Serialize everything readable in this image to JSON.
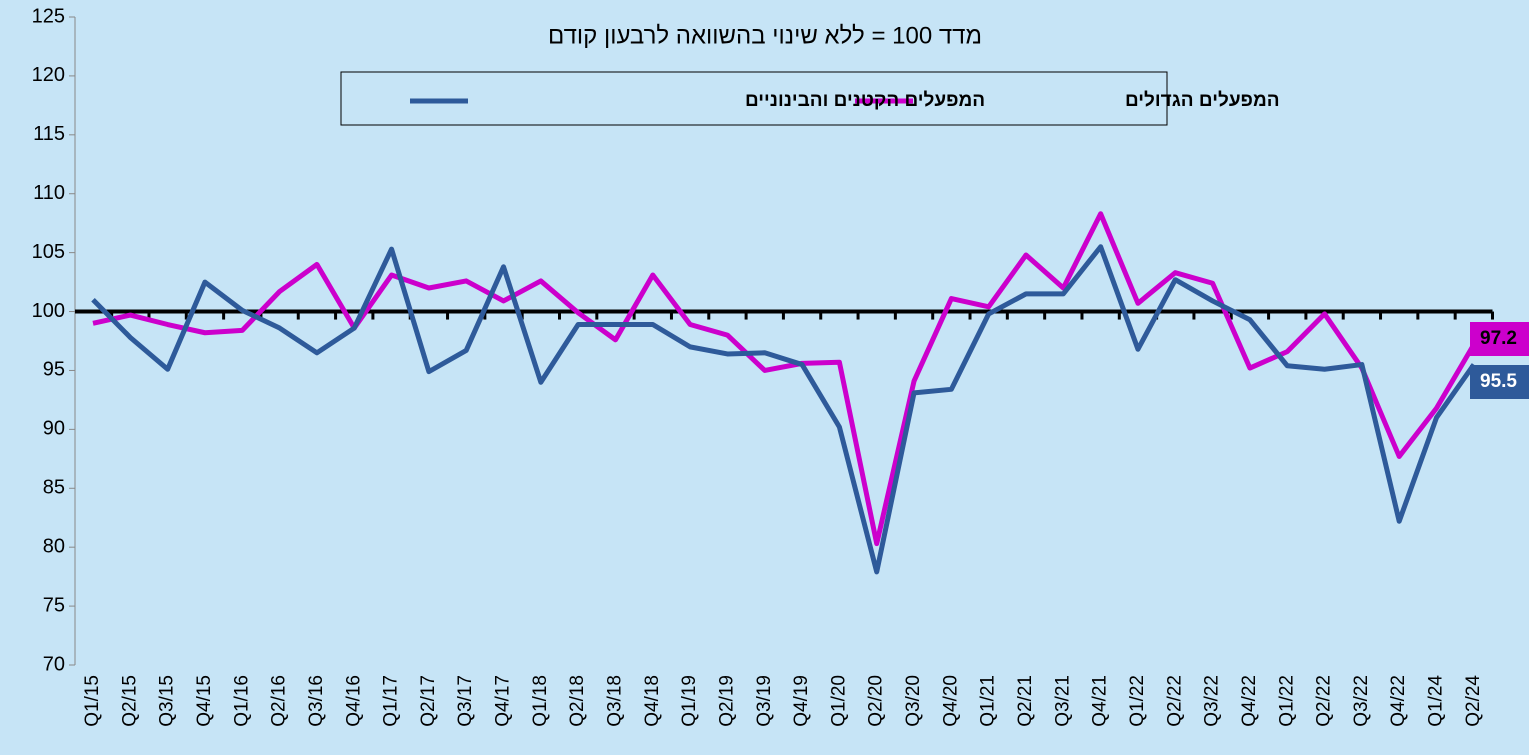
{
  "chart_data": {
    "type": "line",
    "subtitle": "מדד 100 = ללא שינוי בהשוואה לרבעון קודם",
    "categories": [
      "Q1/15",
      "Q2/15",
      "Q3/15",
      "Q4/15",
      "Q1/16",
      "Q2/16",
      "Q3/16",
      "Q4/16",
      "Q1/17",
      "Q2/17",
      "Q3/17",
      "Q4/17",
      "Q1/18",
      "Q2/18",
      "Q3/18",
      "Q4/18",
      "Q1/19",
      "Q2/19",
      "Q3/19",
      "Q4/19",
      "Q1/20",
      "Q2/20",
      "Q3/20",
      "Q4/20",
      "Q1/21",
      "Q2/21",
      "Q3/21",
      "Q4/21",
      "Q1/22",
      "Q2/22",
      "Q3/22",
      "Q4/22",
      "Q1/22",
      "Q2/22",
      "Q3/22",
      "Q4/22",
      "Q1/24",
      "Q2/24"
    ],
    "series": [
      {
        "name": "המפעלים הגדולים",
        "color": "#cc00cc",
        "values": [
          99.0,
          99.7,
          98.9,
          98.2,
          98.4,
          101.7,
          104.0,
          98.6,
          103.1,
          102.0,
          102.6,
          100.9,
          102.6,
          99.9,
          97.6,
          103.1,
          98.9,
          98.0,
          95.0,
          95.6,
          95.7,
          80.3,
          94.1,
          101.1,
          100.4,
          104.8,
          102.0,
          108.3,
          100.7,
          103.3,
          102.4,
          95.2,
          96.6,
          99.8,
          95.2,
          87.7,
          91.8,
          97.2
        ]
      },
      {
        "name": "המפעלים הקטנים והבינוניים",
        "color": "#2e5a9a",
        "values": [
          101.0,
          97.8,
          95.1,
          102.5,
          100.1,
          98.6,
          96.5,
          98.6,
          105.3,
          94.9,
          96.7,
          103.8,
          94.0,
          98.9,
          98.9,
          98.9,
          97.0,
          96.4,
          96.5,
          95.5,
          90.2,
          77.9,
          93.1,
          93.4,
          99.8,
          101.5,
          101.5,
          105.5,
          96.8,
          102.7,
          100.9,
          99.3,
          95.4,
          95.1,
          95.5,
          82.2,
          91.0,
          95.5
        ]
      }
    ],
    "ylim": [
      70,
      125
    ],
    "yticks": [
      70,
      75,
      80,
      85,
      90,
      95,
      100,
      105,
      110,
      115,
      120,
      125
    ],
    "x_axis_crosses": 100,
    "legend": "top",
    "grid": false,
    "background": "#c6e4f6"
  }
}
